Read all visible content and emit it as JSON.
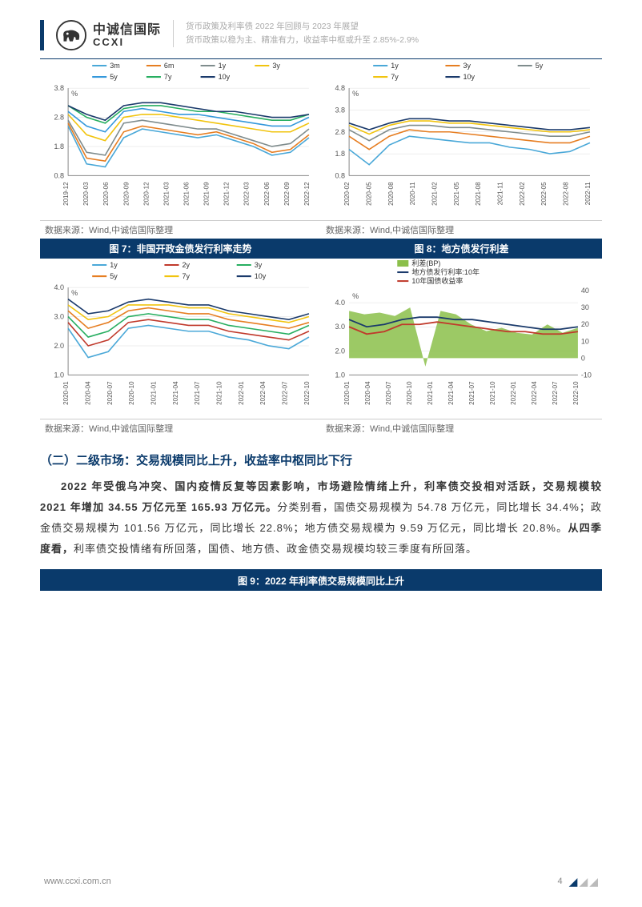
{
  "header": {
    "logo_cn": "中诚信国际",
    "logo_en": "CCXI",
    "subtitle_1": "货币政策及利率债 2022 年回顾与 2023 年展望",
    "subtitle_2": "货币政策以稳为主、精准有力，收益率中枢或升至 2.85%-2.9%"
  },
  "source_label": "数据来源：Wind,中诚信国际整理",
  "captions": {
    "fig7": "图 7：非国开政金债发行利率走势",
    "fig8": "图 8：地方债发行利差",
    "fig9": "图 9：2022 年利率债交易规模同比上升"
  },
  "section_heading": "（二）二级市场：交易规模同比上升，收益率中枢同比下行",
  "body": {
    "bold1": "2022 年受俄乌冲突、国内疫情反复等因素影响，市场避险情绪上升，利率债交投相对活跃，交易规模较 2021 年增加 34.55 万亿元至 165.93 万亿元。",
    "plain1": "分类别看，国债交易规模为 54.78 万亿元，同比增长 34.4%；政金债交易规模为 101.56 万亿元，同比增长 22.8%；地方债交易规模为 9.59 万亿元，同比增长 20.8%。",
    "bold2": "从四季度看，",
    "plain2": "利率债交投情绪有所回落，国债、地方债、政金债交易规模均较三季度有所回落。"
  },
  "footer": {
    "url": "www.ccxi.com.cn",
    "page": "4"
  },
  "chart5": {
    "type": "line",
    "ylabel": "%",
    "xticks": [
      "2019-12",
      "2020-03",
      "2020-06",
      "2020-09",
      "2020-12",
      "2021-03",
      "2021-06",
      "2021-09",
      "2021-12",
      "2022-03",
      "2022-06",
      "2022-09",
      "2022-12"
    ],
    "yticks": [
      0.8,
      1.8,
      2.8,
      3.8
    ],
    "ylim": [
      0.8,
      3.8
    ],
    "series": [
      {
        "name": "3m",
        "color": "#4aa8d8",
        "values": [
          2.5,
          1.2,
          1.1,
          2.1,
          2.4,
          2.3,
          2.2,
          2.1,
          2.2,
          2.0,
          1.8,
          1.5,
          1.6,
          2.1
        ]
      },
      {
        "name": "6m",
        "color": "#e67e22",
        "values": [
          2.6,
          1.4,
          1.3,
          2.3,
          2.5,
          2.4,
          2.3,
          2.2,
          2.3,
          2.1,
          1.9,
          1.6,
          1.7,
          2.2
        ]
      },
      {
        "name": "1y",
        "color": "#7f8c8d",
        "values": [
          2.7,
          1.6,
          1.5,
          2.6,
          2.7,
          2.6,
          2.5,
          2.4,
          2.4,
          2.2,
          2.0,
          1.8,
          1.9,
          2.4
        ]
      },
      {
        "name": "3y",
        "color": "#f1c40f",
        "values": [
          2.9,
          2.2,
          2.0,
          2.8,
          2.9,
          2.9,
          2.8,
          2.7,
          2.6,
          2.5,
          2.4,
          2.3,
          2.3,
          2.6
        ]
      },
      {
        "name": "5y",
        "color": "#3498db",
        "values": [
          3.0,
          2.5,
          2.3,
          3.0,
          3.1,
          3.0,
          2.9,
          2.9,
          2.8,
          2.7,
          2.6,
          2.5,
          2.5,
          2.8
        ]
      },
      {
        "name": "7y",
        "color": "#27ae60",
        "values": [
          3.2,
          2.8,
          2.6,
          3.1,
          3.2,
          3.2,
          3.1,
          3.0,
          3.0,
          2.9,
          2.8,
          2.7,
          2.7,
          2.9
        ]
      },
      {
        "name": "10y",
        "color": "#1a3a6b",
        "values": [
          3.2,
          2.9,
          2.7,
          3.2,
          3.3,
          3.3,
          3.2,
          3.1,
          3.0,
          3.0,
          2.9,
          2.8,
          2.8,
          2.9
        ]
      }
    ]
  },
  "chart6": {
    "type": "line",
    "ylabel": "%",
    "xticks": [
      "2020-02",
      "2020-05",
      "2020-08",
      "2020-11",
      "2021-02",
      "2021-05",
      "2021-08",
      "2021-11",
      "2022-02",
      "2022-05",
      "2022-08",
      "2022-11"
    ],
    "yticks": [
      0.8,
      1.8,
      2.8,
      3.8,
      4.8
    ],
    "ylim": [
      0.8,
      4.8
    ],
    "series": [
      {
        "name": "1y",
        "color": "#4aa8d8",
        "values": [
          2.0,
          1.3,
          2.2,
          2.6,
          2.5,
          2.4,
          2.3,
          2.3,
          2.1,
          2.0,
          1.8,
          1.9,
          2.3
        ]
      },
      {
        "name": "3y",
        "color": "#e67e22",
        "values": [
          2.6,
          2.0,
          2.6,
          2.9,
          2.8,
          2.8,
          2.7,
          2.6,
          2.5,
          2.4,
          2.3,
          2.3,
          2.6
        ]
      },
      {
        "name": "5y",
        "color": "#7f8c8d",
        "values": [
          2.9,
          2.4,
          2.9,
          3.1,
          3.1,
          3.0,
          3.0,
          2.9,
          2.8,
          2.7,
          2.6,
          2.6,
          2.8
        ]
      },
      {
        "name": "7y",
        "color": "#f1c40f",
        "values": [
          3.1,
          2.7,
          3.1,
          3.3,
          3.3,
          3.2,
          3.2,
          3.1,
          3.0,
          2.9,
          2.8,
          2.8,
          2.9
        ]
      },
      {
        "name": "10y",
        "color": "#1a3a6b",
        "values": [
          3.2,
          2.9,
          3.2,
          3.4,
          3.4,
          3.3,
          3.3,
          3.2,
          3.1,
          3.0,
          2.9,
          2.9,
          3.0
        ]
      }
    ]
  },
  "chart7": {
    "type": "line",
    "ylabel": "%",
    "xticks": [
      "2020-01",
      "2020-04",
      "2020-07",
      "2020-10",
      "2021-01",
      "2021-04",
      "2021-07",
      "2021-10",
      "2022-01",
      "2022-04",
      "2022-07",
      "2022-10"
    ],
    "yticks": [
      1.0,
      2.0,
      3.0,
      4.0
    ],
    "ylim": [
      1.0,
      4.0
    ],
    "series": [
      {
        "name": "1y",
        "color": "#4aa8d8",
        "values": [
          2.6,
          1.6,
          1.8,
          2.6,
          2.7,
          2.6,
          2.5,
          2.5,
          2.3,
          2.2,
          2.0,
          1.9,
          2.3
        ]
      },
      {
        "name": "2y",
        "color": "#c0392b",
        "values": [
          2.8,
          2.0,
          2.2,
          2.8,
          2.9,
          2.8,
          2.7,
          2.7,
          2.5,
          2.4,
          2.3,
          2.2,
          2.5
        ]
      },
      {
        "name": "3y",
        "color": "#27ae60",
        "values": [
          3.0,
          2.3,
          2.5,
          3.0,
          3.1,
          3.0,
          2.9,
          2.9,
          2.7,
          2.6,
          2.5,
          2.4,
          2.7
        ]
      },
      {
        "name": "5y",
        "color": "#e67e22",
        "values": [
          3.2,
          2.6,
          2.8,
          3.2,
          3.3,
          3.2,
          3.1,
          3.1,
          2.9,
          2.8,
          2.7,
          2.6,
          2.8
        ]
      },
      {
        "name": "7y",
        "color": "#f1c40f",
        "values": [
          3.4,
          2.9,
          3.0,
          3.4,
          3.4,
          3.4,
          3.3,
          3.3,
          3.1,
          3.0,
          2.9,
          2.8,
          3.0
        ]
      },
      {
        "name": "10y",
        "color": "#1a3a6b",
        "values": [
          3.6,
          3.1,
          3.2,
          3.5,
          3.6,
          3.5,
          3.4,
          3.4,
          3.2,
          3.1,
          3.0,
          2.9,
          3.1
        ]
      }
    ]
  },
  "chart8": {
    "type": "combo",
    "ylabel": "%",
    "y2label": "",
    "xticks": [
      "2020-01",
      "2020-04",
      "2020-07",
      "2020-10",
      "2021-01",
      "2021-04",
      "2021-07",
      "2021-10",
      "2022-01",
      "2022-04",
      "2022-07",
      "2022-10"
    ],
    "yticks": [
      1.0,
      2.0,
      3.0,
      4.0
    ],
    "ylim": [
      1.0,
      4.5
    ],
    "y2ticks": [
      -10,
      0,
      10,
      20,
      30,
      40
    ],
    "y2lim": [
      -10,
      40
    ],
    "area": {
      "name": "利差(BP)",
      "color": "#8bbf4a",
      "values": [
        28,
        26,
        27,
        25,
        30,
        -5,
        28,
        26,
        20,
        16,
        18,
        15,
        14,
        20,
        15,
        18
      ]
    },
    "lines": [
      {
        "name": "地方债发行利率:10年",
        "color": "#1a3a6b",
        "values": [
          3.3,
          3.0,
          3.1,
          3.3,
          3.4,
          3.4,
          3.3,
          3.3,
          3.2,
          3.1,
          3.0,
          2.9,
          2.9,
          3.0
        ]
      },
      {
        "name": "10年国债收益率",
        "color": "#c0392b",
        "values": [
          3.0,
          2.7,
          2.8,
          3.1,
          3.1,
          3.2,
          3.1,
          3.0,
          2.9,
          2.8,
          2.8,
          2.7,
          2.7,
          2.8
        ]
      }
    ]
  },
  "colors": {
    "navy": "#0a3a6b",
    "grid": "#d0d0d0",
    "axis": "#666"
  }
}
